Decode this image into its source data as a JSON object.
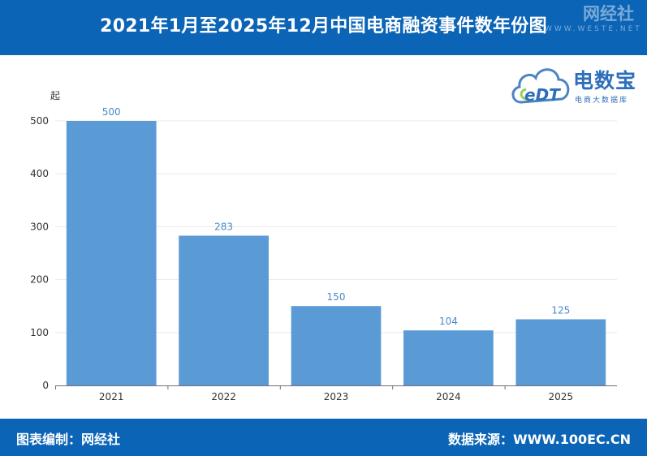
{
  "header": {
    "title": "2021年1月至2025年12月中国电商融资事件数年份图",
    "watermark_name": "网经社",
    "watermark_url": "WWW.WESTE.NET"
  },
  "logo": {
    "text": "电数宝",
    "subtitle": "电商大数据库",
    "badge": "eDT"
  },
  "footer": {
    "left": "图表编制：网经社",
    "right": "数据来源：WWW.100EC.CN"
  },
  "colors": {
    "header_bg": "#0b64b6",
    "bar": "#5b9bd5",
    "value_label": "#4a8ac9",
    "logo": "#2e6fb9"
  },
  "chart_data": {
    "type": "bar",
    "title": "2021年1月至2025年12月中国电商融资事件数年份图",
    "xlabel": "",
    "ylabel": "起",
    "categories": [
      "2021",
      "2022",
      "2023",
      "2024",
      "2025"
    ],
    "values": [
      500,
      283,
      150,
      104,
      125
    ],
    "ylim": [
      0,
      500
    ],
    "yticks": [
      0,
      100,
      200,
      300,
      400,
      500
    ],
    "grid": true,
    "legend": "none"
  }
}
